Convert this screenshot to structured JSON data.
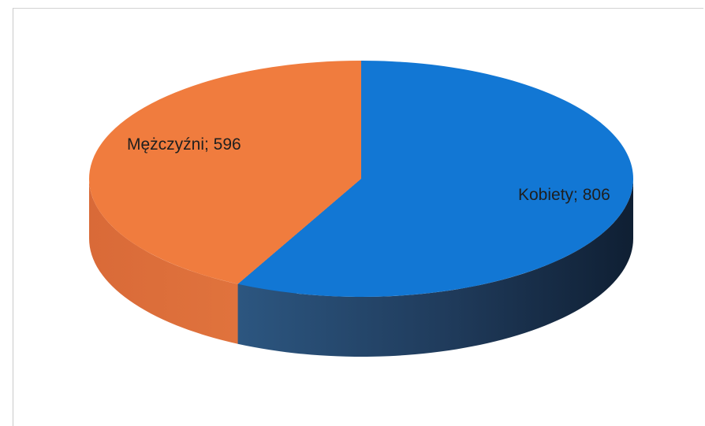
{
  "chart_data": {
    "type": "pie",
    "style": "3d",
    "categories": [
      "Kobiety",
      "Mężczyźni"
    ],
    "values": [
      806,
      596
    ],
    "labels": [
      "Kobiety; 806",
      "Mężczyźni; 596"
    ],
    "colors": [
      "#1277d4",
      "#f07c3e"
    ],
    "title": "",
    "legend": "none"
  }
}
